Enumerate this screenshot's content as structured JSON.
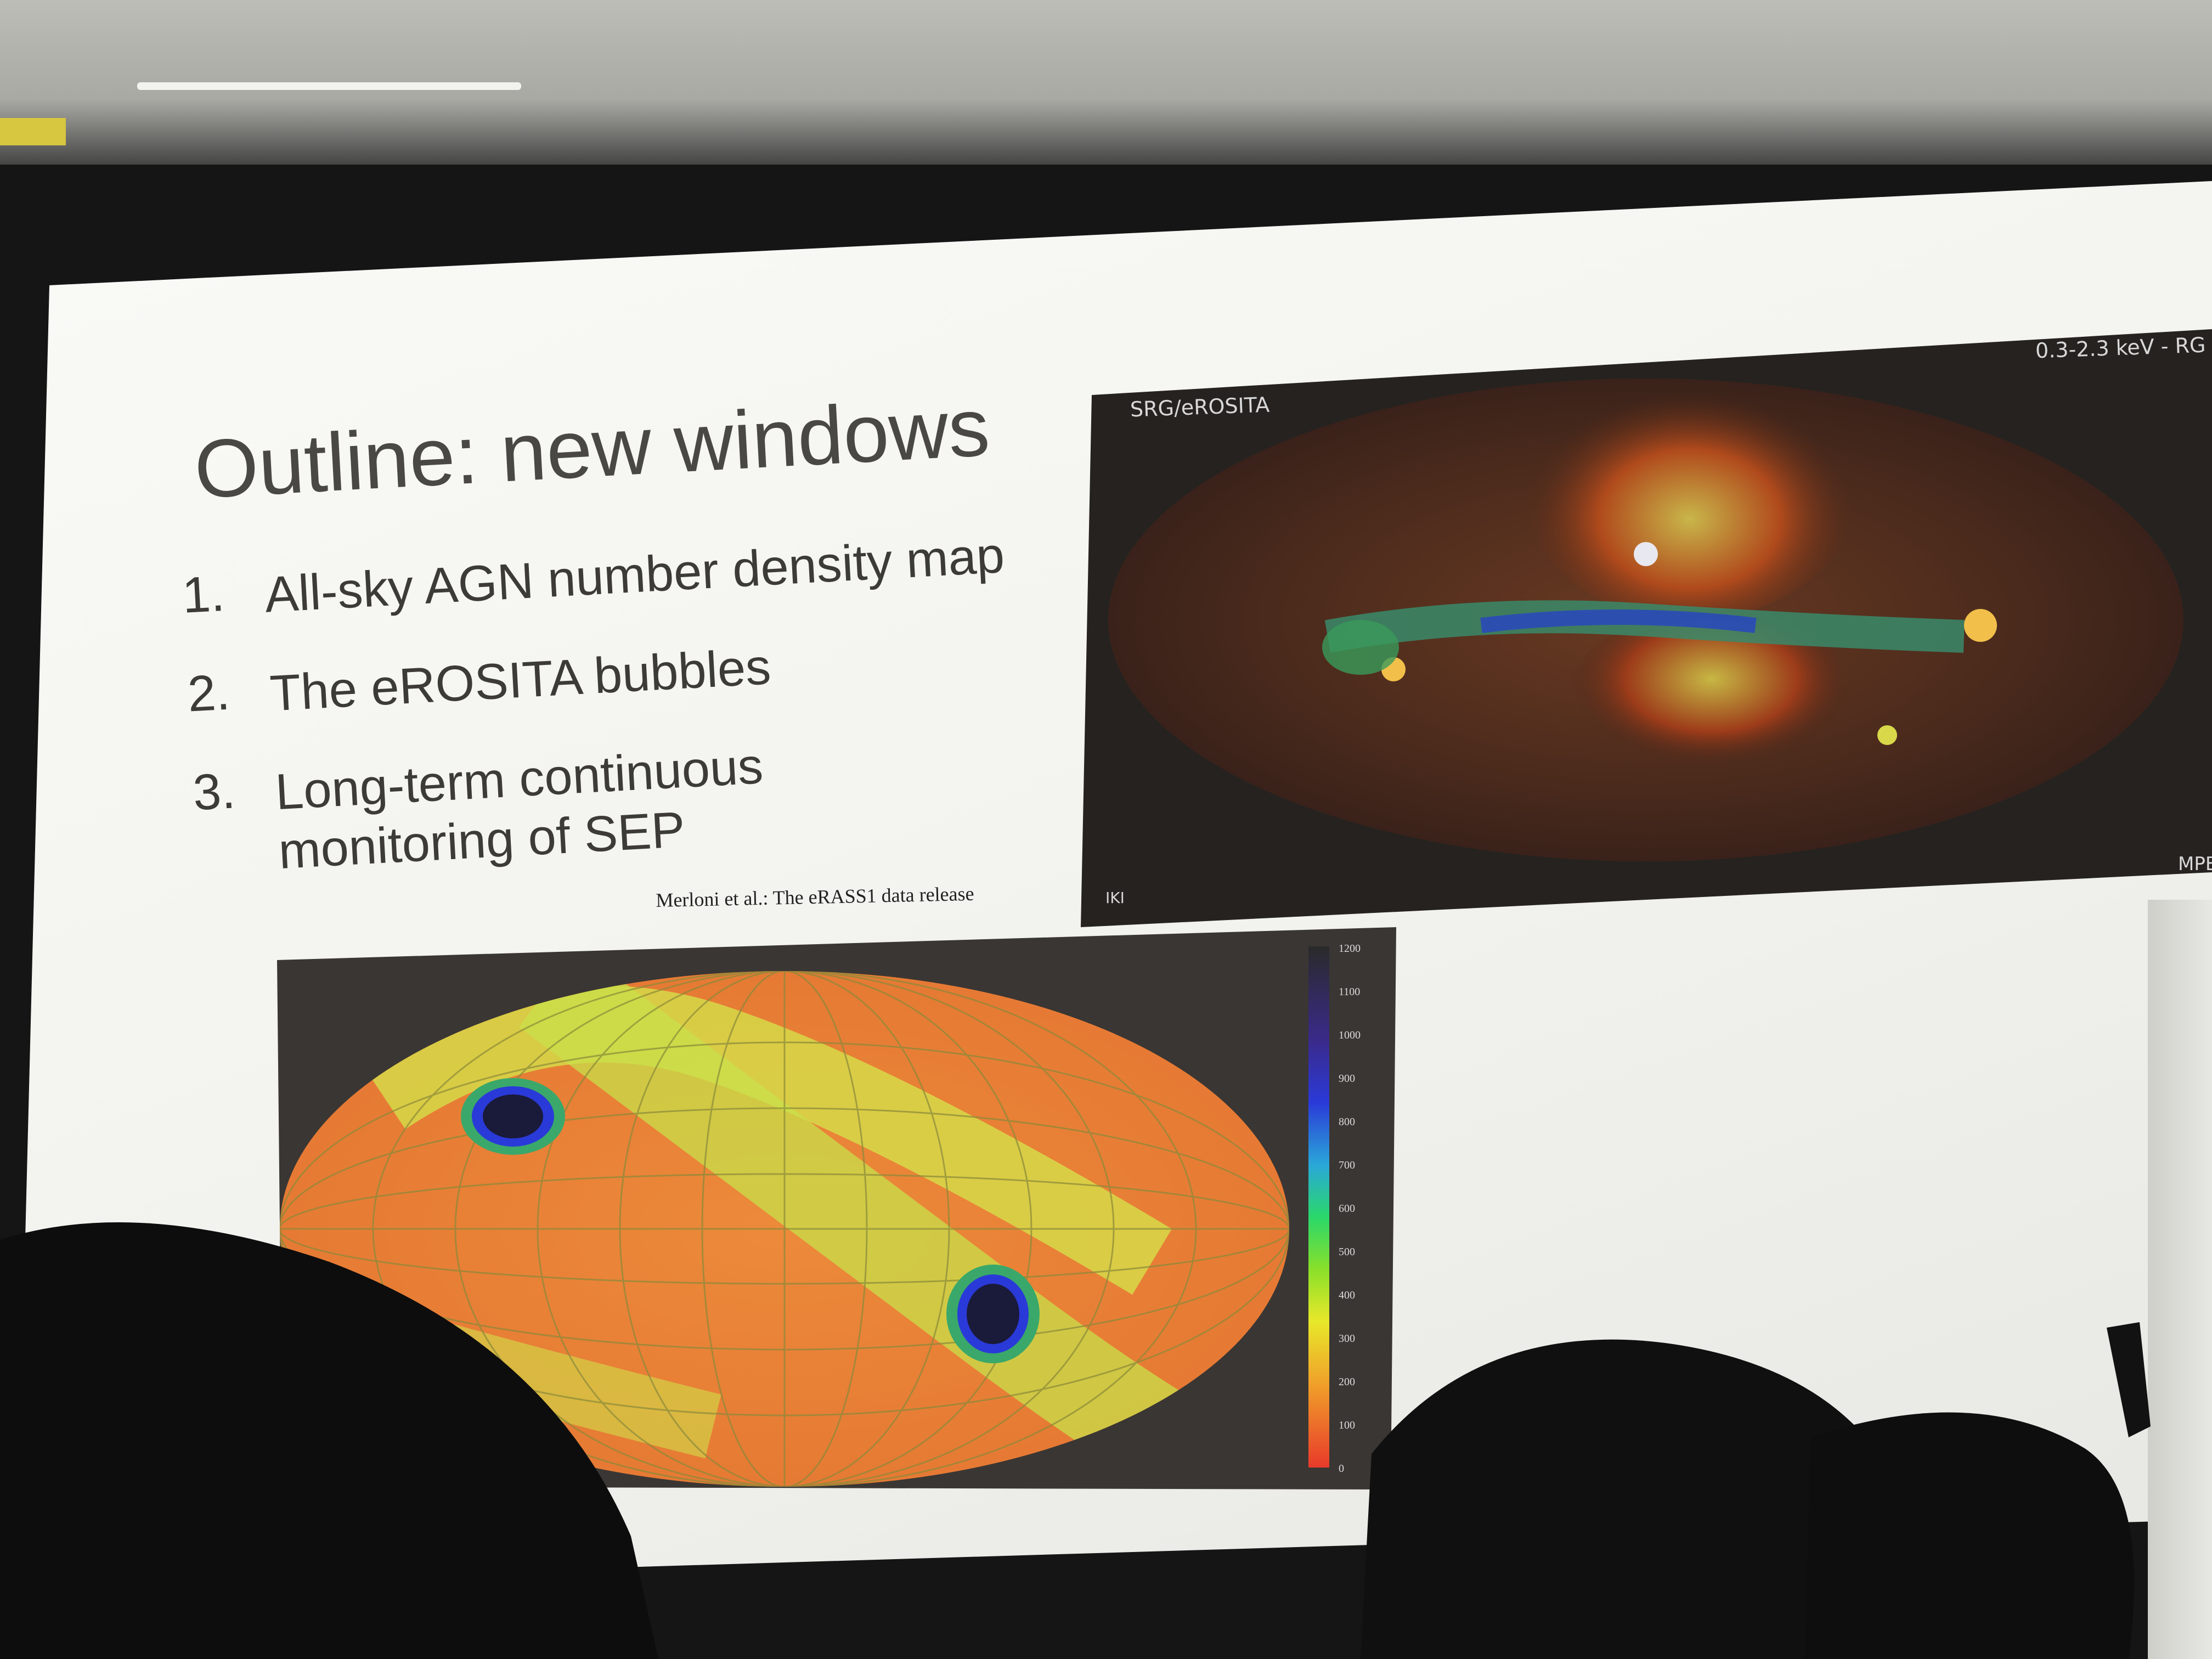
{
  "slide": {
    "title": "Outline: new windows",
    "items": [
      {
        "number": "1.",
        "text": "All-sky AGN number density map"
      },
      {
        "number": "2.",
        "text": "The eROSITA bubbles"
      },
      {
        "number": "3.",
        "text": "Long-term continuous\nmonitoring of SEP"
      }
    ],
    "citation": "Merloni et al.: The eRASS1 data release"
  },
  "xray_map": {
    "source_label": "SRG/eROSITA",
    "band_label": "0.3-2.3 keV - RG",
    "corner_left": "IKI",
    "corner_right": "MPE"
  },
  "exposure_map": {
    "colorbar_ticks": [
      "1200",
      "1100",
      "1000",
      "900",
      "800",
      "700",
      "600",
      "500",
      "400",
      "300",
      "200",
      "100",
      "0"
    ]
  }
}
